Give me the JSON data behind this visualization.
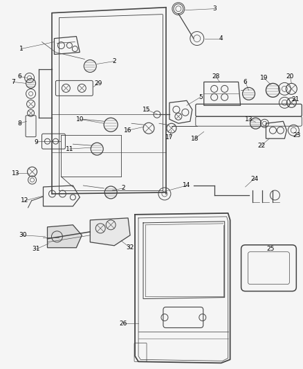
{
  "bg_color": "#f5f5f5",
  "line_color": "#444444",
  "label_color": "#000000",
  "lw": 0.9,
  "fs": 6.5
}
